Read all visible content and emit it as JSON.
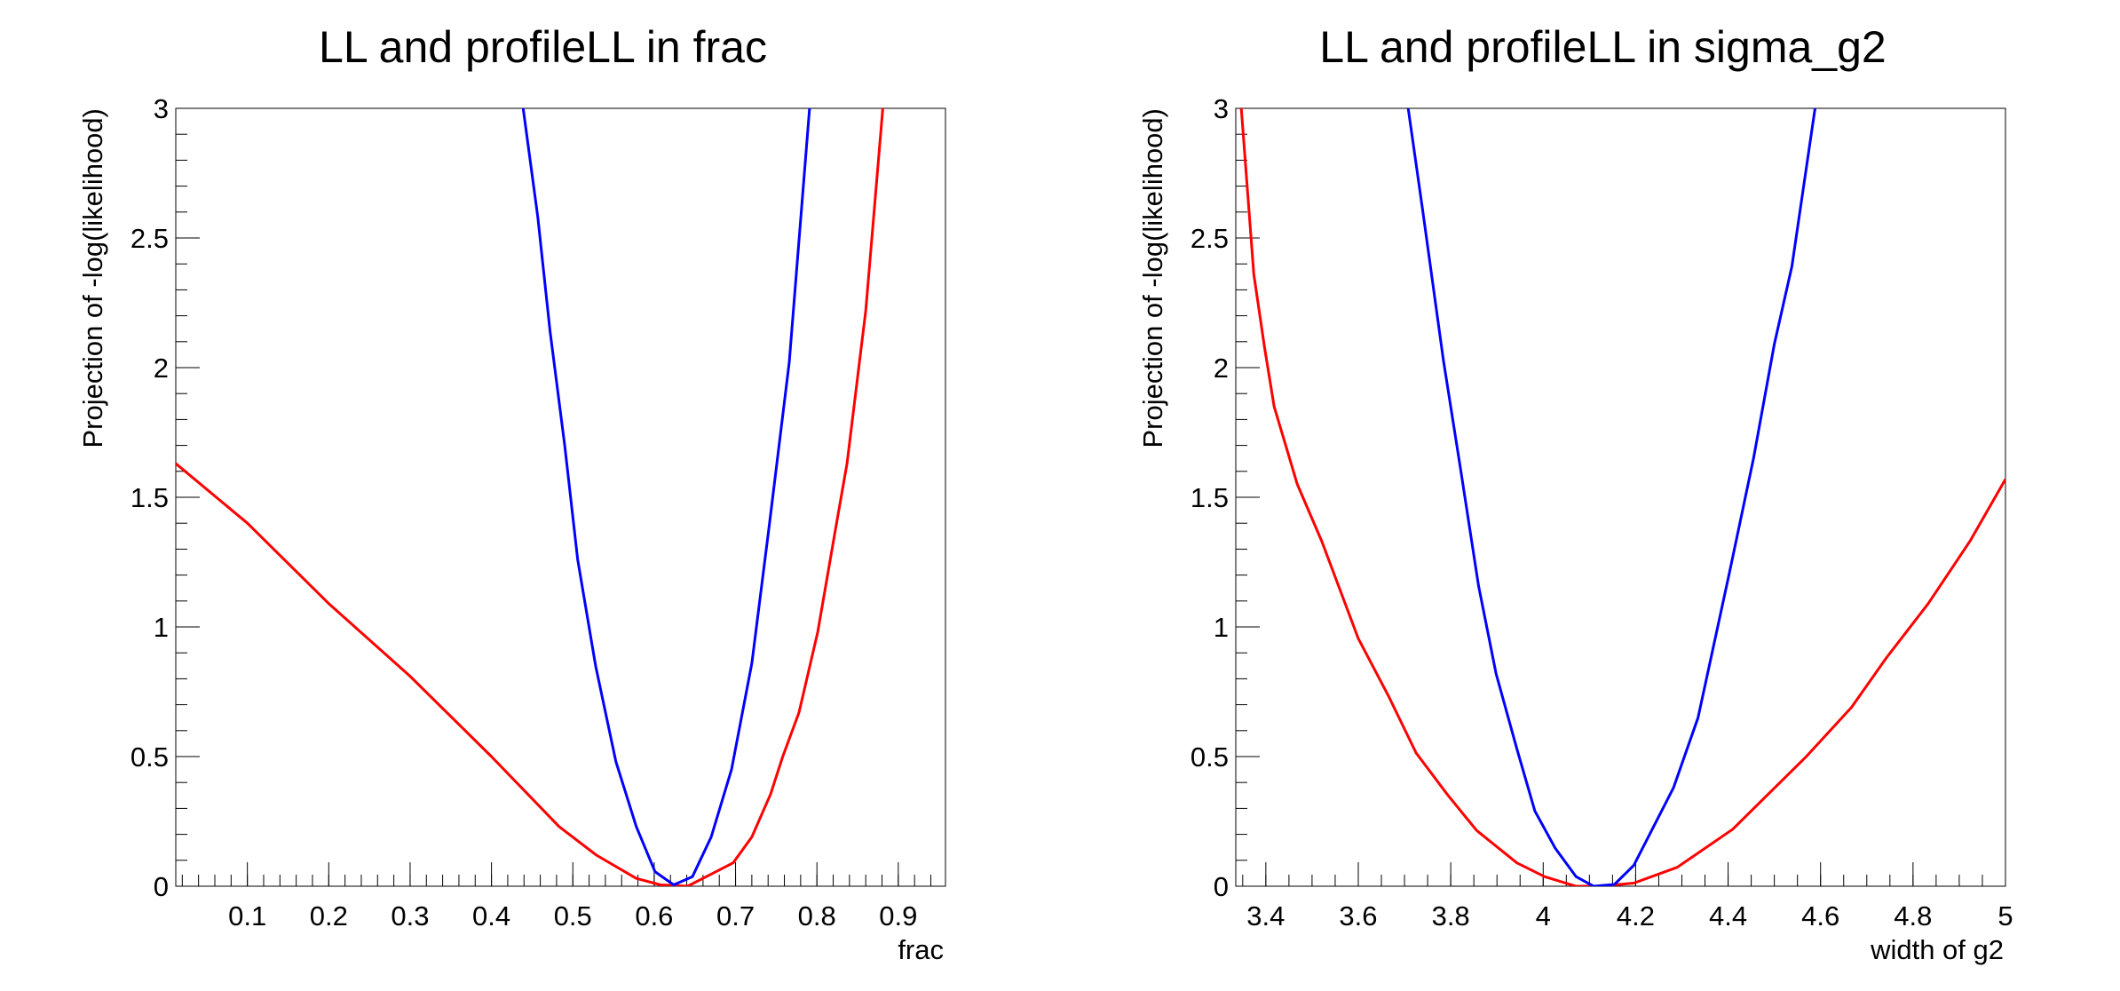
{
  "chart_data": [
    {
      "type": "line",
      "title": "LL and profileLL in frac",
      "xlabel": "frac",
      "ylabel": "Projection of -log(likelihood)",
      "xlim": [
        0.012,
        0.958
      ],
      "ylim": [
        0,
        3
      ],
      "xticks": [
        0.1,
        0.2,
        0.3,
        0.4,
        0.5,
        0.6,
        0.7,
        0.8,
        0.9
      ],
      "xtick_labels": [
        "0.1",
        "0.2",
        "0.3",
        "0.4",
        "0.5",
        "0.6",
        "0.7",
        "0.8",
        "0.9"
      ],
      "xminor_step": 0.02,
      "yticks": [
        0,
        0.5,
        1,
        1.5,
        2,
        2.5,
        3
      ],
      "ytick_labels": [
        "0",
        "0.5",
        "1",
        "1.5",
        "2",
        "2.5",
        "3"
      ],
      "yminor_step": 0.1,
      "grid": false,
      "series": [
        {
          "color": "#ff0000",
          "points": [
            [
              0.012,
              1.63
            ],
            [
              0.1,
              1.4
            ],
            [
              0.2,
              1.09
            ],
            [
              0.3,
              0.81
            ],
            [
              0.4,
              0.5
            ],
            [
              0.483,
              0.23
            ],
            [
              0.529,
              0.12
            ],
            [
              0.578,
              0.03
            ],
            [
              0.608,
              0.005
            ],
            [
              0.641,
              0.0
            ],
            [
              0.666,
              0.04
            ],
            [
              0.697,
              0.09
            ],
            [
              0.72,
              0.19
            ],
            [
              0.743,
              0.355
            ],
            [
              0.758,
              0.5
            ],
            [
              0.778,
              0.67
            ],
            [
              0.801,
              0.98
            ],
            [
              0.823,
              1.38
            ],
            [
              0.837,
              1.63
            ],
            [
              0.86,
              2.22
            ],
            [
              0.881,
              3.0
            ]
          ]
        },
        {
          "color": "#0000ff",
          "points": [
            [
              0.439,
              3.0
            ],
            [
              0.457,
              2.58
            ],
            [
              0.472,
              2.14
            ],
            [
              0.49,
              1.7
            ],
            [
              0.506,
              1.26
            ],
            [
              0.528,
              0.85
            ],
            [
              0.553,
              0.48
            ],
            [
              0.578,
              0.23
            ],
            [
              0.601,
              0.056
            ],
            [
              0.624,
              0.005
            ],
            [
              0.647,
              0.037
            ],
            [
              0.67,
              0.19
            ],
            [
              0.695,
              0.45
            ],
            [
              0.72,
              0.86
            ],
            [
              0.741,
              1.38
            ],
            [
              0.766,
              2.02
            ],
            [
              0.791,
              3.0
            ]
          ]
        }
      ]
    },
    {
      "type": "line",
      "title": "LL and profileLL in sigma_g2",
      "xlabel": "width of g2",
      "ylabel": "Projection of -log(likelihood)",
      "xlim": [
        3.335,
        5.0
      ],
      "ylim": [
        0,
        3
      ],
      "xticks": [
        3.4,
        3.6,
        3.8,
        4.0,
        4.2,
        4.4,
        4.6,
        4.8,
        5.0
      ],
      "xtick_labels": [
        "3.4",
        "3.6",
        "3.8",
        "4",
        "4.2",
        "4.4",
        "4.6",
        "4.8",
        "5"
      ],
      "xminor_step": 0.05,
      "yticks": [
        0,
        0.5,
        1,
        1.5,
        2,
        2.5,
        3
      ],
      "ytick_labels": [
        "0",
        "0.5",
        "1",
        "1.5",
        "2",
        "2.5",
        "3"
      ],
      "yminor_step": 0.1,
      "grid": false,
      "series": [
        {
          "color": "#ff0000",
          "points": [
            [
              3.347,
              3.0
            ],
            [
              3.374,
              2.36
            ],
            [
              3.397,
              2.08
            ],
            [
              3.418,
              1.85
            ],
            [
              3.468,
              1.55
            ],
            [
              3.521,
              1.33
            ],
            [
              3.6,
              0.955
            ],
            [
              3.665,
              0.735
            ],
            [
              3.725,
              0.514
            ],
            [
              3.792,
              0.355
            ],
            [
              3.856,
              0.215
            ],
            [
              3.943,
              0.09
            ],
            [
              4.003,
              0.037
            ],
            [
              4.071,
              0.0
            ],
            [
              4.124,
              0.0
            ],
            [
              4.196,
              0.012
            ],
            [
              4.29,
              0.073
            ],
            [
              4.41,
              0.22
            ],
            [
              4.569,
              0.5
            ],
            [
              4.667,
              0.69
            ],
            [
              4.742,
              0.88
            ],
            [
              4.833,
              1.09
            ],
            [
              4.923,
              1.33
            ],
            [
              5.0,
              1.57
            ]
          ]
        },
        {
          "color": "#0000ff",
          "points": [
            [
              3.708,
              3.0
            ],
            [
              3.739,
              2.61
            ],
            [
              3.784,
              2.03
            ],
            [
              3.822,
              1.6
            ],
            [
              3.86,
              1.16
            ],
            [
              3.898,
              0.82
            ],
            [
              3.943,
              0.53
            ],
            [
              3.982,
              0.29
            ],
            [
              4.026,
              0.147
            ],
            [
              4.071,
              0.037
            ],
            [
              4.109,
              0.0
            ],
            [
              4.154,
              0.007
            ],
            [
              4.196,
              0.08
            ],
            [
              4.282,
              0.38
            ],
            [
              4.335,
              0.65
            ],
            [
              4.403,
              1.21
            ],
            [
              4.455,
              1.65
            ],
            [
              4.5,
              2.09
            ],
            [
              4.538,
              2.39
            ],
            [
              4.588,
              3.0
            ]
          ]
        }
      ]
    }
  ]
}
